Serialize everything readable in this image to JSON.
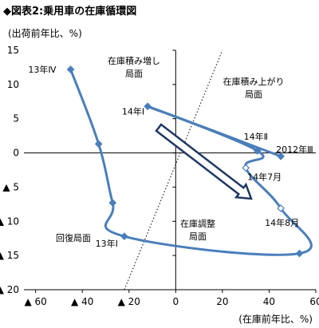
{
  "figure_title": "◆図表2:乗用車の在庫循環図",
  "chart_data": {
    "type": "scatter",
    "title": "◆図表2:乗用車の在庫循環図",
    "ylabel": "(出荷前年比、%)",
    "xlabel": "(在庫前年比、%)",
    "xlim": [
      -65,
      60
    ],
    "ylim": [
      -20,
      15
    ],
    "x_ticks": [
      -60,
      -40,
      -20,
      0,
      20,
      40,
      60
    ],
    "x_tick_labels": [
      "▲ 60",
      "▲ 40",
      "▲ 20",
      "0",
      "20",
      "40",
      "60"
    ],
    "y_ticks": [
      15,
      10,
      5,
      0,
      -5,
      -10,
      -15,
      -20
    ],
    "y_tick_labels": [
      "15",
      "10",
      "5",
      "0",
      "▲ 5",
      "▲ 10",
      "▲ 15",
      "▲ 20"
    ],
    "grid": false,
    "line_color": "#4a7ebb",
    "arrow_color": "#1f3864",
    "series": [
      {
        "points": [
          {
            "label": "13年Ⅳ",
            "x": -45,
            "y": 12.2
          },
          {
            "label": "",
            "x": -33,
            "y": 1.3
          },
          {
            "label": "",
            "x": -27,
            "y": -7.3
          },
          {
            "label": "13年Ⅰ",
            "x": -22,
            "y": -12.2
          },
          {
            "label": "",
            "x": 53,
            "y": -14.7
          },
          {
            "label": "14年8月",
            "x": 45,
            "y": -8.1
          },
          {
            "label": "14年7月",
            "x": 30,
            "y": -2.2
          },
          {
            "label": "14年Ⅱ",
            "x": 35,
            "y": 0.3
          },
          {
            "label": "14年Ⅰ",
            "x": -12,
            "y": 6.8
          },
          {
            "label": "2012年Ⅲ",
            "x": 45,
            "y": -0.5
          }
        ]
      }
    ],
    "reference_line": {
      "style": "dotted",
      "from": {
        "x": -22,
        "y": -20
      },
      "to": {
        "x": 20,
        "y": 15
      }
    },
    "phase_labels": [
      {
        "text": "在庫積み増し局面",
        "lines": [
          "在庫積み増し",
          "局面"
        ]
      },
      {
        "text": "在庫積み上がり局面",
        "lines": [
          "在庫積み上がり",
          "局面"
        ]
      },
      {
        "text": "在庫調整局面",
        "lines": [
          "在庫調整",
          "局面"
        ]
      },
      {
        "text": "回復局面",
        "lines": [
          "回復局面"
        ]
      }
    ]
  }
}
